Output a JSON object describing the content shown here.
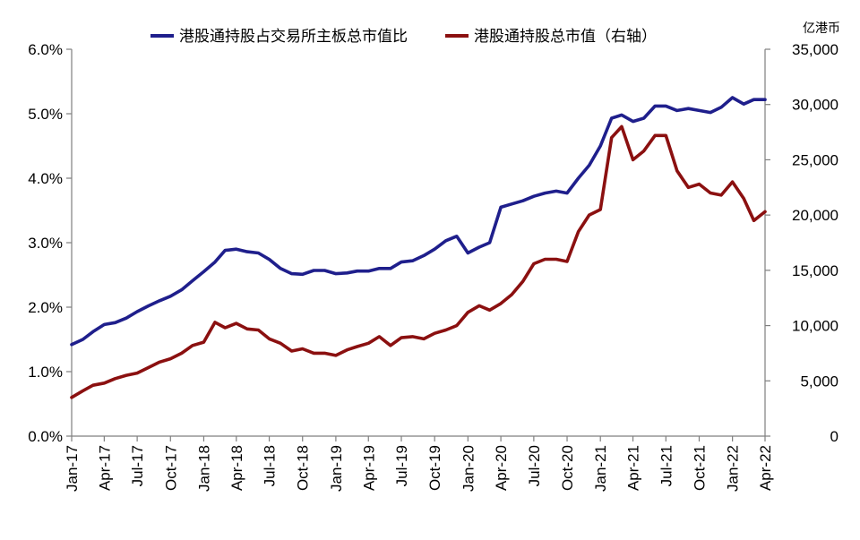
{
  "chart_data": {
    "type": "line",
    "unit_label": "亿港币",
    "x_ticks": [
      "Jan-17",
      "Apr-17",
      "Jul-17",
      "Oct-17",
      "Jan-18",
      "Apr-18",
      "Jul-18",
      "Oct-18",
      "Jan-19",
      "Apr-19",
      "Jul-19",
      "Oct-19",
      "Jan-20",
      "Apr-20",
      "Jul-20",
      "Oct-20",
      "Jan-21",
      "Apr-21",
      "Jul-21",
      "Oct-21",
      "Jan-22",
      "Apr-22"
    ],
    "y_left": {
      "min": 0,
      "max": 6,
      "ticks": [
        "0.0%",
        "1.0%",
        "2.0%",
        "3.0%",
        "4.0%",
        "5.0%",
        "6.0%"
      ]
    },
    "y_right": {
      "min": 0,
      "max": 35000,
      "ticks": [
        "0",
        "5,000",
        "10,000",
        "15,000",
        "20,000",
        "25,000",
        "30,000",
        "35,000"
      ]
    },
    "series": [
      {
        "name": "港股通持股占交易所主板总市值比",
        "color": "#1f1f8c",
        "axis": "left",
        "x": [
          "2017-01",
          "2017-02",
          "2017-03",
          "2017-04",
          "2017-05",
          "2017-06",
          "2017-07",
          "2017-08",
          "2017-09",
          "2017-10",
          "2017-11",
          "2017-12",
          "2018-01",
          "2018-02",
          "2018-03",
          "2018-04",
          "2018-05",
          "2018-06",
          "2018-07",
          "2018-08",
          "2018-09",
          "2018-10",
          "2018-11",
          "2018-12",
          "2019-01",
          "2019-02",
          "2019-03",
          "2019-04",
          "2019-05",
          "2019-06",
          "2019-07",
          "2019-08",
          "2019-09",
          "2019-10",
          "2019-11",
          "2019-12",
          "2020-01",
          "2020-02",
          "2020-03",
          "2020-04",
          "2020-05",
          "2020-06",
          "2020-07",
          "2020-08",
          "2020-09",
          "2020-10",
          "2020-11",
          "2020-12",
          "2021-01",
          "2021-02",
          "2021-03",
          "2021-04",
          "2021-05",
          "2021-06",
          "2021-07",
          "2021-08",
          "2021-09",
          "2021-10",
          "2021-11",
          "2021-12",
          "2022-01",
          "2022-02",
          "2022-03",
          "2022-04"
        ],
        "values": [
          1.42,
          1.5,
          1.62,
          1.73,
          1.76,
          1.83,
          1.93,
          2.02,
          2.1,
          2.17,
          2.27,
          2.41,
          2.55,
          2.7,
          2.88,
          2.9,
          2.86,
          2.84,
          2.74,
          2.6,
          2.52,
          2.51,
          2.57,
          2.57,
          2.52,
          2.53,
          2.56,
          2.56,
          2.6,
          2.6,
          2.7,
          2.72,
          2.8,
          2.9,
          3.03,
          3.1,
          2.84,
          2.93,
          3.0,
          3.55,
          3.6,
          3.65,
          3.72,
          3.77,
          3.8,
          3.77,
          4.0,
          4.2,
          4.5,
          4.93,
          4.98,
          4.88,
          4.93,
          5.12,
          5.12,
          5.05,
          5.08,
          5.05,
          5.02,
          5.1,
          5.25,
          5.15,
          5.22,
          5.22
        ]
      },
      {
        "name": "港股通持股总市值（右轴）",
        "color": "#8b1010",
        "axis": "right",
        "x": [
          "2017-01",
          "2017-02",
          "2017-03",
          "2017-04",
          "2017-05",
          "2017-06",
          "2017-07",
          "2017-08",
          "2017-09",
          "2017-10",
          "2017-11",
          "2017-12",
          "2018-01",
          "2018-02",
          "2018-03",
          "2018-04",
          "2018-05",
          "2018-06",
          "2018-07",
          "2018-08",
          "2018-09",
          "2018-10",
          "2018-11",
          "2018-12",
          "2019-01",
          "2019-02",
          "2019-03",
          "2019-04",
          "2019-05",
          "2019-06",
          "2019-07",
          "2019-08",
          "2019-09",
          "2019-10",
          "2019-11",
          "2019-12",
          "2020-01",
          "2020-02",
          "2020-03",
          "2020-04",
          "2020-05",
          "2020-06",
          "2020-07",
          "2020-08",
          "2020-09",
          "2020-10",
          "2020-11",
          "2020-12",
          "2021-01",
          "2021-02",
          "2021-03",
          "2021-04",
          "2021-05",
          "2021-06",
          "2021-07",
          "2021-08",
          "2021-09",
          "2021-10",
          "2021-11",
          "2021-12",
          "2022-01",
          "2022-02",
          "2022-03",
          "2022-04"
        ],
        "values": [
          3500,
          4100,
          4600,
          4800,
          5200,
          5500,
          5700,
          6200,
          6700,
          7000,
          7500,
          8200,
          8500,
          10300,
          9800,
          10200,
          9700,
          9600,
          8800,
          8400,
          7700,
          7900,
          7500,
          7500,
          7300,
          7800,
          8100,
          8400,
          9000,
          8200,
          8900,
          9000,
          8800,
          9300,
          9600,
          10000,
          11200,
          11800,
          11400,
          12000,
          12800,
          14000,
          15600,
          16000,
          16000,
          15800,
          18500,
          20000,
          20500,
          27000,
          28000,
          25000,
          25800,
          27200,
          27200,
          24000,
          22500,
          22800,
          22000,
          21800,
          23000,
          21500,
          19500,
          20300
        ]
      }
    ],
    "legend_position": "top",
    "grid": false
  }
}
